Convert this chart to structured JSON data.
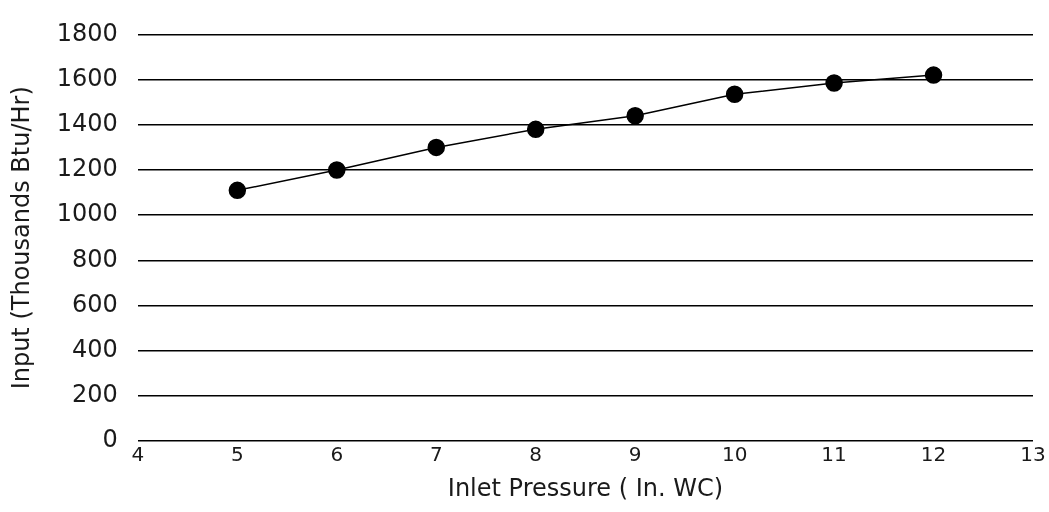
{
  "chart_data": {
    "type": "line",
    "xlabel": "Inlet Pressure ( In. WC)",
    "ylabel": "Input (Thousands Btu/Hr)",
    "x": [
      5,
      6,
      7,
      8,
      9,
      10,
      11,
      12
    ],
    "series": [
      {
        "color": "#000000",
        "values": [
          1110,
          1200,
          1300,
          1380,
          1440,
          1535,
          1585,
          1620
        ]
      }
    ],
    "xlim": [
      4,
      13
    ],
    "xticks": [
      4,
      5,
      6,
      7,
      8,
      9,
      10,
      11,
      12,
      13
    ],
    "ylim": [
      0,
      1800
    ],
    "yticks": [
      0,
      200,
      400,
      600,
      800,
      1000,
      1200,
      1400,
      1600,
      1800
    ],
    "grid": "y",
    "legend": false,
    "marker": "circle",
    "line_style": "solid"
  }
}
